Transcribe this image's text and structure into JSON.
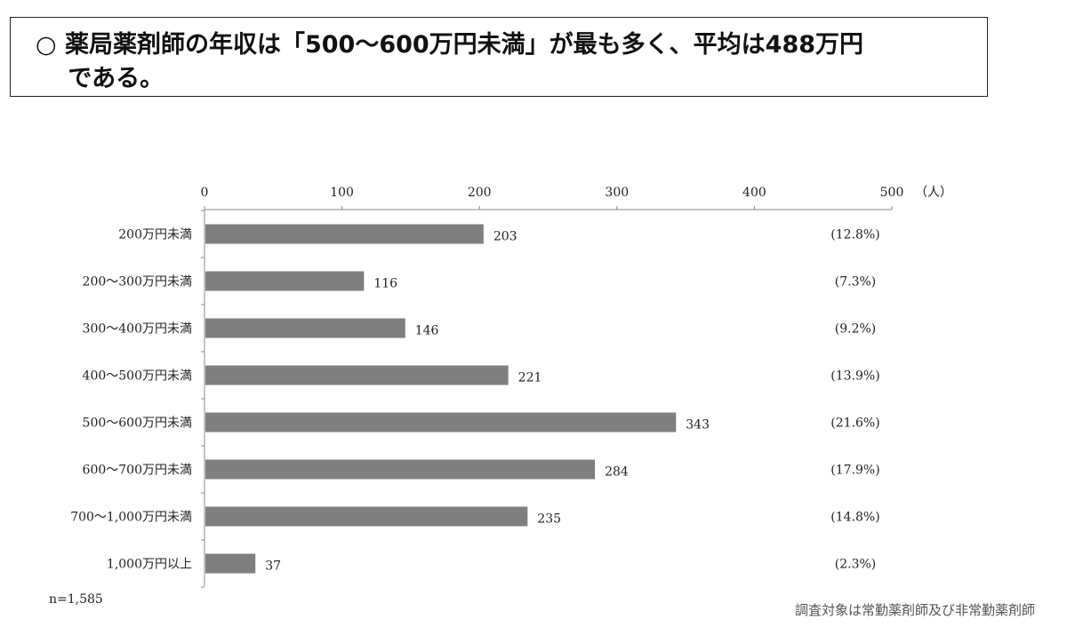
{
  "headline": {
    "text": "○ 薬局薬剤師の年収は「500～600万円未満」が最も多く、平均は488万円\n　 である。"
  },
  "sample_note": "n=1,585",
  "source_note": "調査対象は常勤薬剤師及び非常勤薬剤師",
  "colors": {
    "bar": "#7f7f7f",
    "axis": "#888888",
    "text": "#222222"
  },
  "chart_data": {
    "type": "bar",
    "orientation": "horizontal",
    "title": "",
    "xlabel": "",
    "ylabel": "",
    "unit_label": "（人）",
    "xlim": [
      0,
      500
    ],
    "xticks": [
      "0",
      "100",
      "200",
      "300",
      "400",
      "500"
    ],
    "xtick_values": [
      0,
      100,
      200,
      300,
      400,
      500
    ],
    "grid": false,
    "categories": [
      "200万円未満",
      "200～300万円未満",
      "300～400万円未満",
      "400～500万円未満",
      "500～600万円未満",
      "600～700万円未満",
      "700～1,000万円未満",
      "1,000万円以上"
    ],
    "values": [
      203,
      116,
      146,
      221,
      343,
      284,
      235,
      37
    ],
    "value_labels": [
      "203",
      "116",
      "146",
      "221",
      "343",
      "284",
      "235",
      "37"
    ],
    "percent_labels": [
      "(12.8%)",
      "(7.3%)",
      "(9.2%)",
      "(13.9%)",
      "(21.6%)",
      "(17.9%)",
      "(14.8%)",
      "(2.3%)"
    ]
  }
}
